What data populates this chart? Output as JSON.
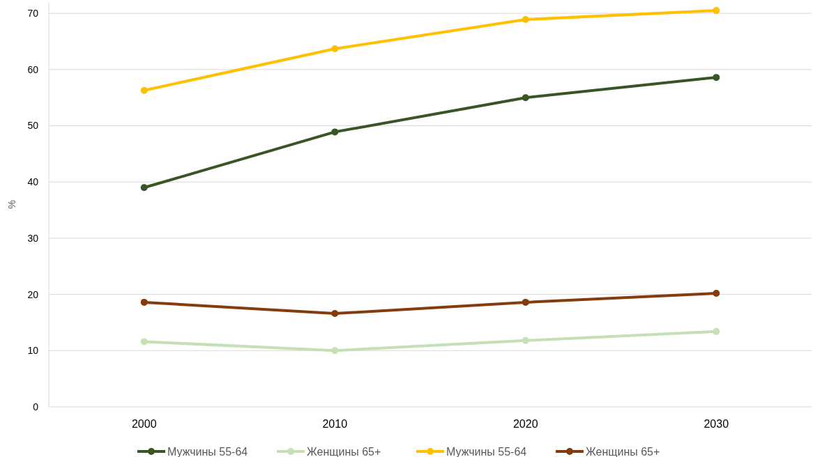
{
  "chart_data": {
    "type": "line",
    "ylabel": "%",
    "categories": [
      "2000",
      "2010",
      "2020",
      "2030"
    ],
    "series": [
      {
        "name": "Мужчины 55-64",
        "color": "#375623",
        "values": [
          39.0,
          48.9,
          55.0,
          58.6
        ]
      },
      {
        "name": "Женщины 65+",
        "color": "#c5e0b4",
        "values": [
          11.6,
          10.0,
          11.8,
          13.4
        ]
      },
      {
        "name": "Мужчины 55-64",
        "color": "#ffc000",
        "values": [
          56.3,
          63.7,
          68.9,
          70.5
        ]
      },
      {
        "name": "Женщины 65+",
        "color": "#843c0c",
        "values": [
          18.6,
          16.6,
          18.6,
          20.2
        ]
      }
    ],
    "ylim": [
      0,
      72
    ],
    "yticks": [
      0,
      10,
      20,
      30,
      40,
      50,
      60,
      70
    ],
    "grid": "y",
    "legend": "bottom",
    "marker": "circle",
    "line_style": "solid"
  }
}
